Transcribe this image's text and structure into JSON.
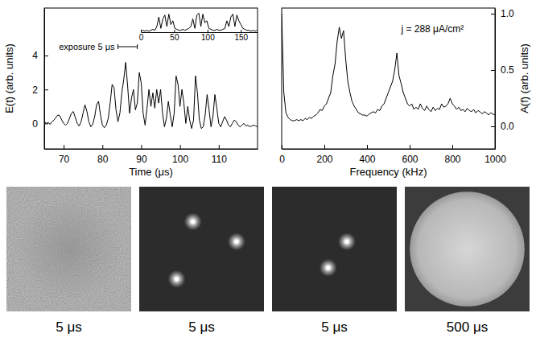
{
  "chart_data": [
    {
      "type": "line",
      "xlabel": "Time (μs)",
      "ylabel": "E(t) (arb. units)",
      "x": [
        65,
        65.5,
        66,
        66.5,
        67,
        67.5,
        68,
        68.5,
        69,
        69.5,
        70,
        70.5,
        71,
        71.5,
        72,
        72.5,
        73,
        73.5,
        74,
        74.5,
        75,
        75.5,
        76,
        76.5,
        77,
        77.5,
        78,
        78.5,
        79,
        79.5,
        80,
        80.5,
        81,
        81.5,
        82,
        82.5,
        83,
        83.5,
        84,
        84.5,
        85,
        85.5,
        86,
        86.5,
        87,
        87.5,
        88,
        88.5,
        89,
        89.5,
        90,
        90.5,
        91,
        91.5,
        92,
        92.5,
        93,
        93.5,
        94,
        94.5,
        95,
        95.5,
        96,
        96.5,
        97,
        97.5,
        98,
        98.5,
        99,
        99.5,
        100,
        100.5,
        101,
        101.5,
        102,
        102.5,
        103,
        103.5,
        104,
        104.5,
        105,
        105.5,
        106,
        106.5,
        107,
        107.5,
        108,
        108.5,
        109,
        109.5,
        110,
        110.5,
        111,
        111.5,
        112,
        112.5,
        113,
        113.5,
        114,
        114.5,
        115,
        115.5,
        116,
        116.5,
        117,
        117.5,
        118,
        118.5,
        119,
        119.5,
        120
      ],
      "series": [
        {
          "color": "#000000",
          "values": [
            0.1,
            0.0,
            0.05,
            -0.05,
            0.1,
            0.2,
            0.35,
            0.5,
            0.45,
            0.2,
            0.0,
            -0.1,
            0.0,
            0.3,
            0.6,
            0.7,
            0.35,
            0.0,
            -0.15,
            0.1,
            0.6,
            1.1,
            0.7,
            0.1,
            -0.2,
            -0.05,
            0.4,
            1.1,
            1.3,
            0.5,
            -0.1,
            -0.25,
            -0.1,
            0.3,
            1.2,
            2.3,
            2.1,
            0.8,
            0.1,
            0.6,
            1.8,
            2.6,
            3.6,
            2.2,
            0.6,
            1.5,
            2.0,
            0.8,
            1.2,
            3.0,
            2.4,
            0.6,
            -0.1,
            0.9,
            2.0,
            1.0,
            1.8,
            0.9,
            2.0,
            1.2,
            2.0,
            0.6,
            -0.2,
            0.3,
            1.3,
            0.5,
            -0.2,
            0.6,
            2.8,
            2.3,
            1.0,
            2.0,
            1.2,
            0.0,
            1.0,
            0.2,
            -0.3,
            0.2,
            2.8,
            1.8,
            0.2,
            -0.3,
            -0.2,
            0.5,
            1.7,
            0.8,
            -0.2,
            0.4,
            1.7,
            0.9,
            0.0,
            -0.2,
            0.1,
            0.4,
            0.2,
            -0.1,
            -0.2,
            0.0,
            0.2,
            0.1,
            -0.1,
            -0.2,
            -0.1,
            0.0,
            -0.15,
            -0.1,
            -0.2,
            -0.15,
            -0.1,
            -0.15,
            -0.2
          ]
        }
      ],
      "xlim": [
        65,
        120
      ],
      "ylim": [
        -1.5,
        6.8
      ],
      "xticks": [
        70,
        80,
        90,
        100,
        110
      ],
      "yticks": [
        0,
        2,
        4
      ],
      "annotations": [
        {
          "text": "exposure 5 μs",
          "start": 84,
          "end": 89
        }
      ]
    },
    {
      "type": "line",
      "xlabel": "Frequency (kHz)",
      "y2label": "A(f) (arb. units)",
      "x": [
        0,
        10,
        20,
        30,
        40,
        50,
        60,
        70,
        80,
        90,
        100,
        110,
        120,
        130,
        140,
        150,
        160,
        170,
        180,
        190,
        200,
        210,
        220,
        230,
        240,
        250,
        260,
        270,
        280,
        290,
        300,
        310,
        320,
        330,
        340,
        350,
        360,
        370,
        380,
        390,
        400,
        410,
        420,
        430,
        440,
        450,
        460,
        470,
        480,
        490,
        500,
        510,
        520,
        530,
        540,
        550,
        560,
        570,
        580,
        590,
        600,
        610,
        620,
        630,
        640,
        650,
        660,
        670,
        680,
        690,
        700,
        710,
        720,
        730,
        740,
        750,
        760,
        770,
        780,
        790,
        800,
        810,
        820,
        830,
        840,
        850,
        860,
        870,
        880,
        890,
        900,
        910,
        920,
        930,
        940,
        950,
        960,
        970,
        980,
        990,
        1000
      ],
      "series": [
        {
          "color": "#000000",
          "axis": "y2",
          "values": [
            1.0,
            0.3,
            0.12,
            0.08,
            0.06,
            0.05,
            0.05,
            0.06,
            0.05,
            0.06,
            0.05,
            0.07,
            0.06,
            0.08,
            0.07,
            0.09,
            0.1,
            0.12,
            0.15,
            0.14,
            0.18,
            0.2,
            0.25,
            0.3,
            0.45,
            0.55,
            0.75,
            0.88,
            0.78,
            0.85,
            0.6,
            0.4,
            0.3,
            0.22,
            0.18,
            0.15,
            0.12,
            0.11,
            0.1,
            0.1,
            0.09,
            0.11,
            0.12,
            0.13,
            0.12,
            0.15,
            0.14,
            0.18,
            0.2,
            0.25,
            0.3,
            0.35,
            0.4,
            0.5,
            0.65,
            0.45,
            0.38,
            0.3,
            0.25,
            0.2,
            0.18,
            0.2,
            0.15,
            0.17,
            0.15,
            0.2,
            0.16,
            0.14,
            0.18,
            0.15,
            0.13,
            0.17,
            0.14,
            0.16,
            0.15,
            0.2,
            0.17,
            0.18,
            0.2,
            0.25,
            0.2,
            0.18,
            0.15,
            0.17,
            0.14,
            0.15,
            0.13,
            0.16,
            0.14,
            0.13,
            0.15,
            0.12,
            0.14,
            0.13,
            0.11,
            0.13,
            0.12,
            0.1,
            0.12,
            0.11,
            0.1
          ]
        }
      ],
      "xlim": [
        0,
        1000
      ],
      "y2lim": [
        -0.2,
        1.05
      ],
      "xticks": [
        0,
        200,
        400,
        600,
        800,
        1000
      ],
      "y2ticks": [
        {
          "value": 0,
          "label": "0.0"
        },
        {
          "value": 0.5,
          "label": "0.5"
        },
        {
          "value": 1,
          "label": "1.0"
        }
      ],
      "annotations": [
        "j = 288 μA/cm²"
      ]
    },
    {
      "type": "line",
      "x": [
        0,
        3,
        6,
        9,
        12,
        15,
        18,
        21,
        24,
        27,
        30,
        33,
        36,
        39,
        42,
        45,
        48,
        51,
        54,
        57,
        60,
        63,
        66,
        69,
        72,
        75,
        78,
        81,
        84,
        87,
        90,
        93,
        96,
        99,
        102,
        105,
        108,
        111,
        114,
        117,
        120,
        123,
        126,
        129,
        132,
        135,
        138,
        141,
        144,
        147,
        150,
        153,
        156,
        159,
        162,
        165,
        168,
        171,
        174
      ],
      "series": [
        {
          "color": "#000000",
          "values": [
            0.05,
            0.1,
            0.05,
            0.1,
            0.05,
            0.1,
            0.15,
            0.1,
            0.3,
            0.8,
            0.2,
            0.7,
            0.9,
            0.3,
            0.95,
            0.4,
            0.6,
            0.2,
            0.15,
            0.1,
            0.1,
            0.15,
            0.1,
            0.15,
            0.2,
            0.3,
            0.7,
            0.2,
            0.9,
            1.0,
            0.3,
            0.95,
            0.5,
            0.6,
            0.2,
            0.15,
            0.1,
            0.1,
            0.15,
            0.1,
            0.1,
            0.15,
            0.2,
            0.6,
            0.3,
            0.8,
            0.95,
            0.3,
            0.9,
            0.6,
            0.4,
            0.2,
            0.15,
            0.1,
            0.1,
            0.05,
            0.1,
            0.05,
            0.1
          ]
        }
      ],
      "xlim": [
        0,
        175
      ],
      "ylim": [
        0,
        1.1
      ],
      "xticks": [
        0,
        50,
        100,
        150
      ],
      "tick_labels": "x"
    }
  ],
  "images": {
    "xlim": [
      0,
      1
    ],
    "ylim": [
      0,
      1
    ],
    "frames": [
      {
        "type": "noise",
        "label": "5 μs"
      },
      {
        "type": "spots",
        "label": "5 μs",
        "spots": [
          [
            0.43,
            0.28
          ],
          [
            0.78,
            0.44
          ],
          [
            0.3,
            0.74
          ]
        ]
      },
      {
        "type": "spots",
        "label": "5 μs",
        "spots": [
          [
            0.6,
            0.44
          ],
          [
            0.45,
            0.65
          ]
        ]
      },
      {
        "type": "disk",
        "label": "500 μs"
      }
    ]
  }
}
